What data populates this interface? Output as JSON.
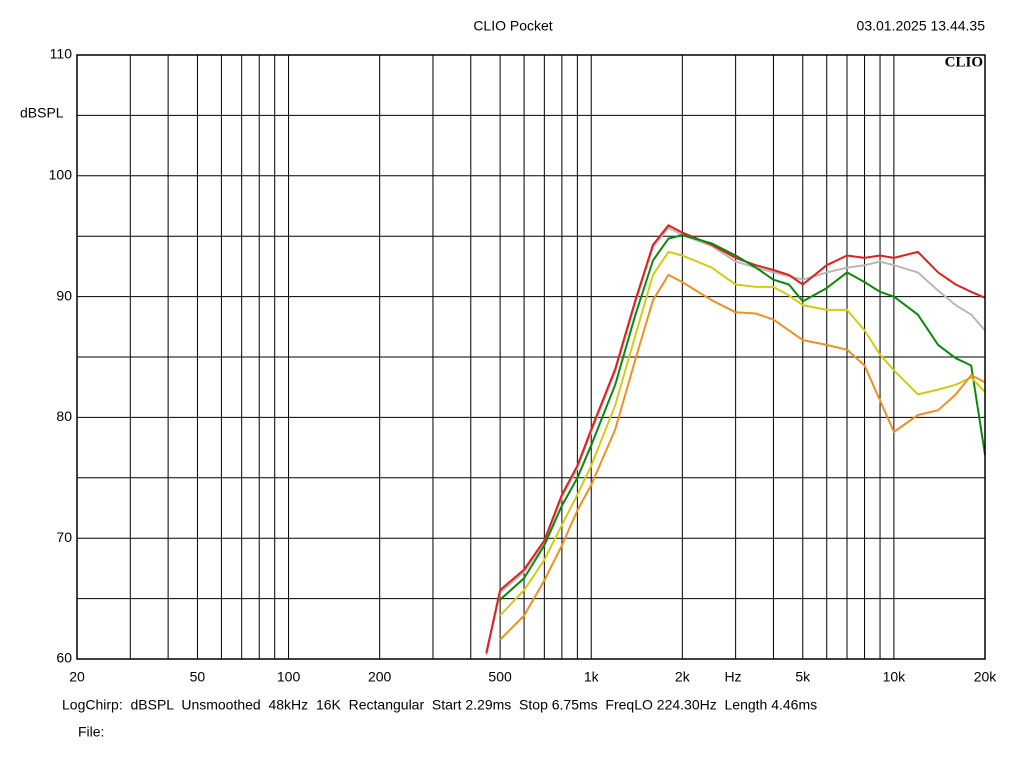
{
  "chart_data": {
    "type": "line",
    "title": "CLIO Pocket",
    "timestamp": "03.01.2025 13.44.35",
    "logo": "CLIO",
    "xlabel": "Hz",
    "ylabel": "dBSPL",
    "footer": "LogChirp:  dBSPL  Unsmoothed  48kHz  16K  Rectangular  Start 2.29ms  Stop 6.75ms  FreqLO 224.30Hz  Length 4.46ms",
    "file_label": "File:",
    "xscale": "log",
    "xlim": [
      20,
      20000
    ],
    "ylim": [
      60,
      110
    ],
    "xticks": [
      20,
      50,
      100,
      200,
      500,
      {
        "value": 1000,
        "label": "1k"
      },
      {
        "value": 2000,
        "label": "2k"
      },
      {
        "value": 5000,
        "label": "5k"
      },
      {
        "value": 10000,
        "label": "10k"
      },
      {
        "value": 20000,
        "label": "20k"
      }
    ],
    "yticks": [
      60,
      70,
      80,
      90,
      100,
      110
    ],
    "xgrid": [
      30,
      40,
      50,
      60,
      70,
      80,
      90,
      100,
      200,
      300,
      400,
      500,
      600,
      700,
      800,
      900,
      1000,
      2000,
      3000,
      4000,
      5000,
      6000,
      7000,
      8000,
      9000,
      10000
    ],
    "ygrid": [
      65,
      70,
      75,
      80,
      85,
      90,
      95,
      100,
      105
    ],
    "x": [
      450,
      500,
      600,
      700,
      800,
      900,
      1000,
      1200,
      1400,
      1600,
      1800,
      2000,
      2500,
      3000,
      3500,
      4000,
      4500,
      5000,
      6000,
      7000,
      8000,
      9000,
      10000,
      12000,
      14000,
      16000,
      18000,
      20000
    ],
    "series": [
      {
        "color": "#b8b8b8",
        "values": [
          60.3,
          65.5,
          67.2,
          69.6,
          73.4,
          75.8,
          78.8,
          83.8,
          89.5,
          94.1,
          95.7,
          95.1,
          94.2,
          92.9,
          92.4,
          92.0,
          91.7,
          91.4,
          92.0,
          92.4,
          92.6,
          92.9,
          92.6,
          92.0,
          90.5,
          89.3,
          88.5,
          87.2
        ]
      },
      {
        "color": "#e02020",
        "values": [
          60.5,
          65.7,
          67.4,
          69.8,
          73.6,
          76.0,
          79.0,
          84.0,
          89.7,
          94.3,
          95.9,
          95.3,
          94.3,
          93.2,
          92.6,
          92.2,
          91.8,
          91.0,
          92.6,
          93.4,
          93.2,
          93.4,
          93.2,
          93.7,
          92.0,
          91.0,
          90.4,
          89.9
        ]
      },
      {
        "color": "#0a8a0a",
        "values": [
          null,
          64.9,
          66.7,
          69.4,
          72.7,
          75.0,
          77.7,
          82.7,
          88.5,
          93.0,
          94.8,
          95.1,
          94.4,
          93.4,
          92.4,
          91.4,
          91.0,
          89.6,
          90.7,
          92.0,
          91.2,
          90.4,
          90.0,
          88.5,
          86.0,
          84.9,
          84.3,
          76.9
        ]
      },
      {
        "color": "#d4cc10",
        "values": [
          null,
          63.6,
          65.7,
          68.2,
          71.1,
          73.6,
          76.0,
          81.0,
          86.8,
          91.8,
          93.7,
          93.4,
          92.4,
          91.0,
          90.8,
          90.8,
          90.1,
          89.3,
          88.9,
          88.9,
          87.2,
          85.2,
          83.9,
          81.9,
          82.3,
          82.7,
          83.3,
          82.1
        ]
      },
      {
        "color": "#f09020",
        "values": [
          null,
          61.6,
          63.6,
          66.5,
          69.4,
          72.3,
          74.4,
          79.0,
          84.8,
          89.7,
          91.8,
          91.2,
          89.7,
          88.7,
          88.6,
          88.1,
          87.2,
          86.4,
          86.0,
          85.6,
          84.3,
          81.4,
          78.8,
          80.2,
          80.6,
          81.9,
          83.5,
          82.9
        ]
      }
    ]
  }
}
